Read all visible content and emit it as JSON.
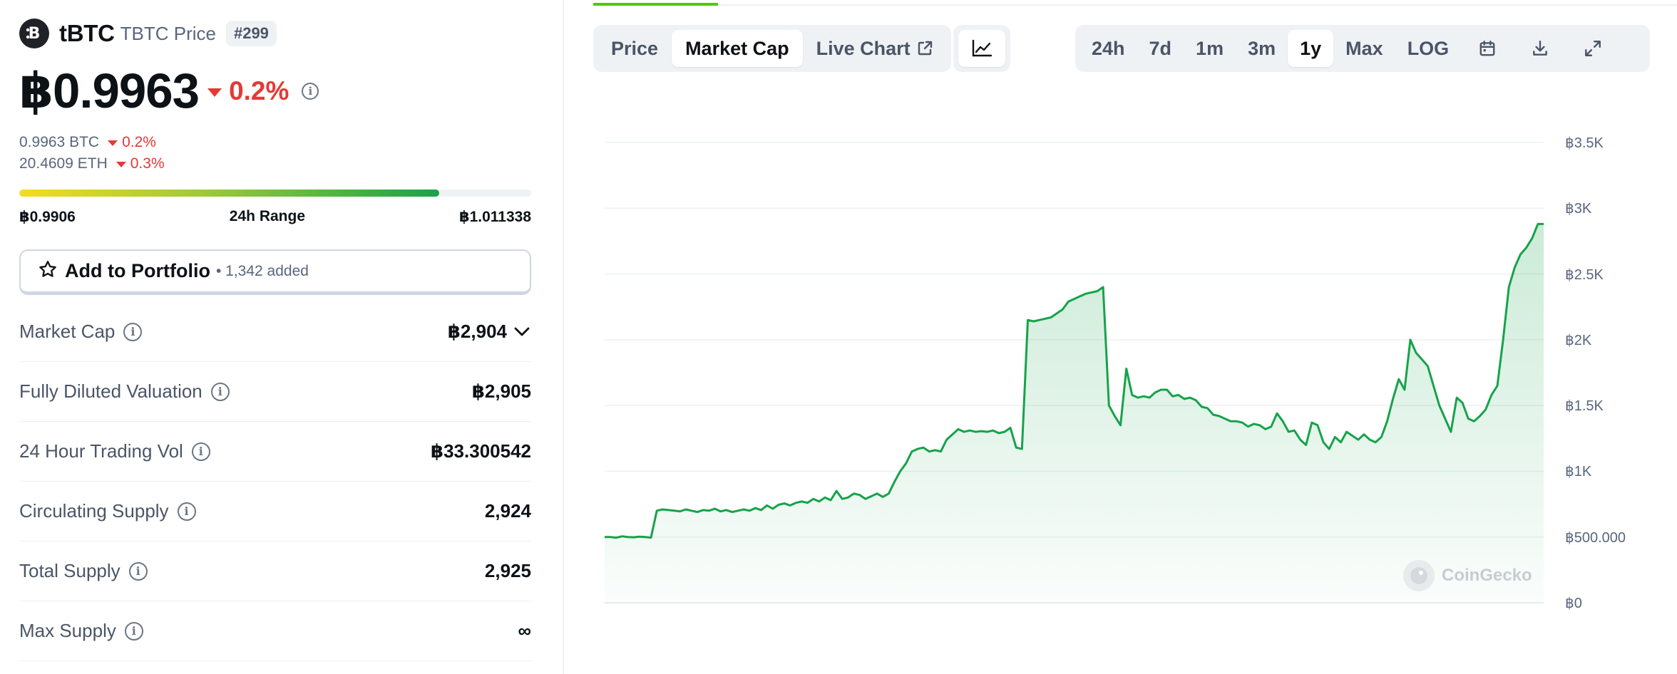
{
  "coin": {
    "name": "tBTC",
    "subtitle": "TBTC Price",
    "rank": "#299",
    "price": "฿0.9963",
    "price_change": "0.2%",
    "conversions": [
      {
        "value": "0.9963 BTC",
        "change": "0.2%"
      },
      {
        "value": "20.4609 ETH",
        "change": "0.3%"
      }
    ]
  },
  "range_24h": {
    "low": "฿0.9906",
    "label": "24h Range",
    "high": "฿1.011338",
    "position_fraction": 0.82
  },
  "portfolio": {
    "label": "Add to Portfolio",
    "count": "• 1,342 added"
  },
  "stats": [
    {
      "label": "Market Cap",
      "value": "฿2,904",
      "has_dropdown": true
    },
    {
      "label": "Fully Diluted Valuation",
      "value": "฿2,905"
    },
    {
      "label": "24 Hour Trading Vol",
      "value": "฿33.300542"
    },
    {
      "label": "Circulating Supply",
      "value": "2,924"
    },
    {
      "label": "Total Supply",
      "value": "2,925"
    },
    {
      "label": "Max Supply",
      "value": "∞"
    }
  ],
  "chart_tabs": [
    {
      "label": "Price",
      "active": false
    },
    {
      "label": "Market Cap",
      "active": true
    },
    {
      "label": "Live Chart",
      "active": false,
      "external": true
    }
  ],
  "time_ranges": [
    {
      "label": "24h",
      "active": false
    },
    {
      "label": "7d",
      "active": false
    },
    {
      "label": "1m",
      "active": false
    },
    {
      "label": "3m",
      "active": false
    },
    {
      "label": "1y",
      "active": true
    },
    {
      "label": "Max",
      "active": false
    },
    {
      "label": "LOG",
      "active": false
    }
  ],
  "icons": {
    "logo": "tbtc-logo-icon",
    "chart_type": "line-chart-icon",
    "calendar": "calendar-icon",
    "download": "download-icon",
    "fullscreen": "expand-icon",
    "star": "star-icon",
    "info": "info-icon",
    "chevron": "chevron-down-icon",
    "external": "external-link-icon"
  },
  "colors": {
    "line": "#16a34a",
    "negative": "#e53935",
    "accent": "#4bcc00"
  },
  "watermark": "CoinGecko",
  "chart_data": {
    "type": "area",
    "y_tick_labels": [
      "฿3.5K",
      "฿3K",
      "฿2.5K",
      "฿2K",
      "฿1.5K",
      "฿1K",
      "฿500.000",
      "฿0"
    ],
    "ylim": [
      0,
      3500
    ],
    "grid": true,
    "series": [
      {
        "values": [
          500,
          500,
          495,
          505,
          500,
          498,
          502,
          500,
          495,
          700,
          710,
          705,
          700,
          695,
          710,
          700,
          690,
          705,
          700,
          715,
          695,
          705,
          690,
          700,
          710,
          700,
          720,
          705,
          740,
          715,
          745,
          755,
          740,
          760,
          770,
          760,
          790,
          770,
          800,
          780,
          850,
          790,
          800,
          830,
          820,
          790,
          810,
          830,
          805,
          830,
          920,
          1000,
          1060,
          1150,
          1170,
          1180,
          1150,
          1160,
          1150,
          1240,
          1280,
          1320,
          1300,
          1310,
          1300,
          1305,
          1300,
          1310,
          1290,
          1300,
          1330,
          1180,
          1170,
          2150,
          2140,
          2150,
          2160,
          2170,
          2200,
          2230,
          2290,
          2310,
          2330,
          2350,
          2360,
          2370,
          2400,
          1500,
          1420,
          1350,
          1780,
          1580,
          1560,
          1570,
          1560,
          1600,
          1620,
          1620,
          1570,
          1580,
          1550,
          1560,
          1540,
          1490,
          1480,
          1430,
          1420,
          1400,
          1380,
          1380,
          1370,
          1340,
          1360,
          1350,
          1320,
          1340,
          1440,
          1380,
          1300,
          1310,
          1240,
          1200,
          1370,
          1350,
          1220,
          1170,
          1260,
          1220,
          1300,
          1270,
          1240,
          1280,
          1240,
          1220,
          1260,
          1380,
          1550,
          1700,
          1620,
          2000,
          1900,
          1850,
          1800,
          1650,
          1500,
          1400,
          1300,
          1560,
          1520,
          1400,
          1380,
          1420,
          1470,
          1580,
          1650,
          2000,
          2400,
          2550,
          2650,
          2700,
          2770,
          2880,
          2880
        ]
      }
    ]
  }
}
